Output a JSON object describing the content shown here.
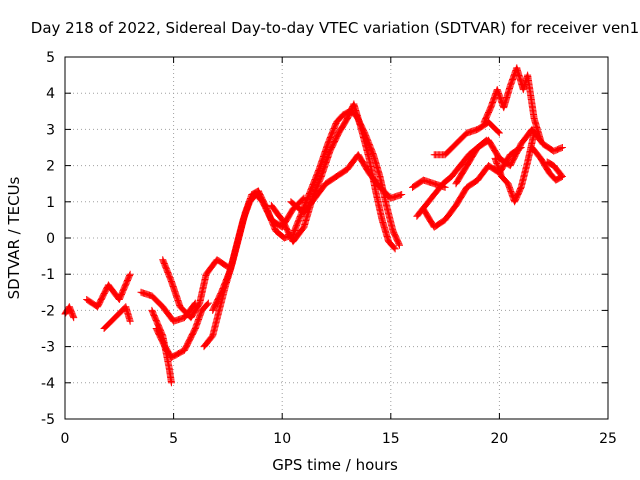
{
  "chart_data": {
    "type": "scatter",
    "title": "Day 218 of 2022, Sidereal Day-to-day VTEC variation (SDTVAR) for receiver ven1",
    "xlabel": "GPS time / hours",
    "ylabel": "SDTVAR / TECUs",
    "xlim": [
      0,
      25
    ],
    "ylim": [
      -5,
      5
    ],
    "xticks": [
      "0",
      "5",
      "10",
      "15",
      "20",
      "25"
    ],
    "yticks": [
      "-5",
      "-4",
      "-3",
      "-2",
      "-1",
      "0",
      "1",
      "2",
      "3",
      "4",
      "5"
    ],
    "grid": true,
    "marker": "+",
    "color": "#ff0000",
    "series": [
      {
        "tracks": [
          [
            [
              0.0,
              -2.1
            ],
            [
              0.2,
              -1.9
            ],
            [
              0.4,
              -2.2
            ]
          ],
          [
            [
              1.0,
              -1.7
            ],
            [
              1.5,
              -1.9
            ],
            [
              2.0,
              -1.3
            ],
            [
              2.5,
              -1.7
            ],
            [
              3.0,
              -1.0
            ]
          ],
          [
            [
              1.8,
              -2.5
            ],
            [
              2.3,
              -2.2
            ],
            [
              2.8,
              -1.9
            ],
            [
              3.0,
              -2.3
            ]
          ],
          [
            [
              3.5,
              -1.5
            ],
            [
              4.0,
              -1.6
            ],
            [
              4.5,
              -1.9
            ],
            [
              5.0,
              -2.3
            ],
            [
              5.5,
              -2.2
            ],
            [
              6.0,
              -1.8
            ]
          ],
          [
            [
              4.0,
              -2.0
            ],
            [
              4.5,
              -2.7
            ],
            [
              4.8,
              -3.6
            ],
            [
              4.9,
              -4.0
            ]
          ],
          [
            [
              4.2,
              -2.5
            ],
            [
              4.6,
              -3.0
            ],
            [
              4.9,
              -3.3
            ],
            [
              5.5,
              -3.1
            ],
            [
              6.0,
              -2.5
            ],
            [
              6.3,
              -2.0
            ],
            [
              6.6,
              -1.8
            ]
          ],
          [
            [
              4.5,
              -0.6
            ],
            [
              4.9,
              -1.2
            ],
            [
              5.3,
              -1.9
            ],
            [
              5.8,
              -2.2
            ],
            [
              6.2,
              -1.8
            ],
            [
              6.5,
              -1.0
            ],
            [
              7.0,
              -0.6
            ],
            [
              7.5,
              -0.8
            ]
          ],
          [
            [
              6.4,
              -3.0
            ],
            [
              6.8,
              -2.7
            ],
            [
              7.1,
              -2.0
            ],
            [
              7.4,
              -1.3
            ],
            [
              7.7,
              -0.7
            ],
            [
              8.0,
              0.0
            ],
            [
              8.3,
              0.7
            ],
            [
              8.6,
              1.2
            ],
            [
              8.9,
              1.3
            ]
          ],
          [
            [
              6.8,
              -2.0
            ],
            [
              7.2,
              -1.5
            ],
            [
              7.6,
              -0.9
            ],
            [
              7.9,
              -0.2
            ],
            [
              8.2,
              0.5
            ],
            [
              8.5,
              1.0
            ],
            [
              8.8,
              1.2
            ],
            [
              9.1,
              1.0
            ],
            [
              9.5,
              0.5
            ],
            [
              10.0,
              0.3
            ],
            [
              10.5,
              0.8
            ],
            [
              11.0,
              1.1
            ]
          ],
          [
            [
              8.9,
              1.3
            ],
            [
              9.3,
              0.8
            ],
            [
              9.7,
              0.2
            ],
            [
              10.1,
              0.0
            ],
            [
              10.5,
              0.1
            ],
            [
              10.9,
              0.7
            ],
            [
              11.3,
              1.3
            ],
            [
              11.7,
              1.9
            ],
            [
              12.1,
              2.6
            ],
            [
              12.5,
              3.2
            ],
            [
              12.8,
              3.4
            ],
            [
              13.1,
              3.5
            ],
            [
              13.4,
              3.4
            ],
            [
              13.8,
              2.9
            ],
            [
              14.2,
              2.3
            ],
            [
              14.5,
              1.7
            ],
            [
              14.8,
              0.9
            ],
            [
              15.1,
              0.2
            ],
            [
              15.4,
              -0.2
            ]
          ],
          [
            [
              9.5,
              0.9
            ],
            [
              10.0,
              0.5
            ],
            [
              10.5,
              -0.1
            ],
            [
              11.0,
              0.3
            ],
            [
              11.4,
              1.1
            ],
            [
              11.8,
              1.7
            ],
            [
              12.2,
              2.4
            ],
            [
              12.6,
              2.9
            ],
            [
              13.0,
              3.3
            ],
            [
              13.3,
              3.7
            ],
            [
              13.6,
              3.1
            ],
            [
              14.0,
              2.2
            ],
            [
              14.3,
              1.3
            ],
            [
              14.6,
              0.5
            ],
            [
              14.9,
              -0.1
            ],
            [
              15.2,
              -0.3
            ]
          ],
          [
            [
              10.4,
              1.0
            ],
            [
              11.0,
              0.7
            ],
            [
              11.5,
              1.1
            ],
            [
              12.0,
              1.5
            ],
            [
              12.5,
              1.7
            ],
            [
              13.0,
              1.9
            ],
            [
              13.5,
              2.3
            ],
            [
              14.0,
              1.8
            ],
            [
              14.5,
              1.4
            ],
            [
              15.0,
              1.1
            ],
            [
              15.5,
              1.2
            ]
          ],
          [
            [
              16.0,
              1.4
            ],
            [
              16.5,
              1.6
            ],
            [
              17.0,
              1.5
            ],
            [
              17.5,
              1.4
            ]
          ],
          [
            [
              16.2,
              0.6
            ],
            [
              16.6,
              0.9
            ],
            [
              17.0,
              1.2
            ],
            [
              17.4,
              1.5
            ],
            [
              17.8,
              1.7
            ],
            [
              18.2,
              2.0
            ],
            [
              18.6,
              2.3
            ],
            [
              19.0,
              2.5
            ],
            [
              19.4,
              2.7
            ]
          ],
          [
            [
              16.5,
              0.8
            ],
            [
              17.0,
              0.3
            ],
            [
              17.5,
              0.5
            ],
            [
              18.0,
              0.9
            ],
            [
              18.5,
              1.4
            ],
            [
              19.0,
              1.6
            ],
            [
              19.5,
              2.0
            ],
            [
              20.0,
              1.8
            ],
            [
              20.5,
              2.3
            ],
            [
              21.0,
              2.5
            ]
          ],
          [
            [
              17.0,
              2.3
            ],
            [
              17.5,
              2.3
            ],
            [
              18.0,
              2.6
            ],
            [
              18.5,
              2.9
            ],
            [
              19.0,
              3.0
            ],
            [
              19.5,
              3.2
            ],
            [
              20.0,
              2.9
            ]
          ],
          [
            [
              18.0,
              1.5
            ],
            [
              18.5,
              2.0
            ],
            [
              19.0,
              2.5
            ],
            [
              19.5,
              2.7
            ],
            [
              20.0,
              2.2
            ],
            [
              20.5,
              2.0
            ],
            [
              21.0,
              2.6
            ],
            [
              21.5,
              3.0
            ],
            [
              22.0,
              2.6
            ],
            [
              22.5,
              2.4
            ],
            [
              22.9,
              2.5
            ]
          ],
          [
            [
              19.3,
              3.2
            ],
            [
              19.6,
              3.6
            ],
            [
              19.9,
              4.1
            ],
            [
              20.2,
              3.6
            ],
            [
              20.5,
              4.2
            ],
            [
              20.8,
              4.7
            ],
            [
              21.1,
              4.1
            ],
            [
              21.3,
              4.5
            ],
            [
              21.6,
              3.3
            ],
            [
              21.9,
              2.7
            ]
          ],
          [
            [
              19.8,
              2.2
            ],
            [
              20.1,
              1.7
            ],
            [
              20.4,
              1.5
            ],
            [
              20.7,
              1.0
            ],
            [
              21.0,
              1.4
            ],
            [
              21.3,
              2.1
            ],
            [
              21.6,
              2.9
            ]
          ],
          [
            [
              21.5,
              2.5
            ],
            [
              21.9,
              2.2
            ],
            [
              22.3,
              1.8
            ],
            [
              22.6,
              1.6
            ],
            [
              22.9,
              1.7
            ],
            [
              22.5,
              2.0
            ],
            [
              22.2,
              2.1
            ]
          ]
        ]
      }
    ]
  }
}
